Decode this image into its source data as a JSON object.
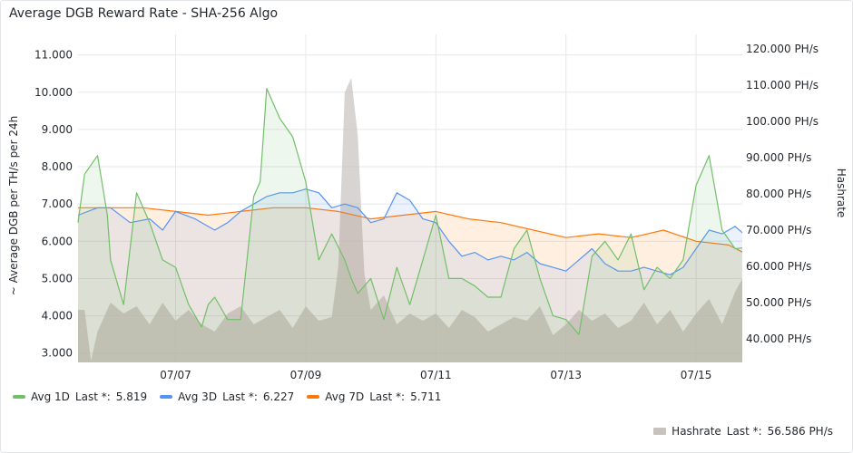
{
  "panel": {
    "title": "Average DGB Reward Rate - SHA-256 Algo"
  },
  "colors": {
    "avg1d": "#73bf69",
    "avg3d": "#5794f2",
    "avg7d": "#ff780a",
    "hashrate": "#c8c2bd",
    "grid": "#e6e8ea"
  },
  "legend": [
    {
      "name": "Avg 1D",
      "last_label": "Last *:",
      "last": "5.819",
      "color_key": "avg1d"
    },
    {
      "name": "Avg 3D",
      "last_label": "Last *:",
      "last": "6.227",
      "color_key": "avg3d"
    },
    {
      "name": "Avg 7D",
      "last_label": "Last *:",
      "last": "5.711",
      "color_key": "avg7d"
    }
  ],
  "legend_right": {
    "name": "Hashrate",
    "last_label": "Last *:",
    "last": "56.586 PH/s",
    "color_key": "hashrate"
  },
  "chart_data": {
    "type": "line",
    "ylabel": "~ Average DGB per TH/s per 24h",
    "y2label": "Hashrate",
    "ylim": [
      2.75,
      11.55
    ],
    "y2lim": [
      33.5,
      124.0
    ],
    "yticks": [
      "3.000",
      "4.000",
      "5.000",
      "6.000",
      "7.000",
      "8.000",
      "9.000",
      "10.000",
      "11.000"
    ],
    "y2ticks": [
      "40.000 PH/s",
      "50.000 PH/s",
      "60.000 PH/s",
      "70.000 PH/s",
      "80.000 PH/s",
      "90.000 PH/s",
      "100.000 PH/s",
      "110.000 PH/s",
      "120.000 PH/s"
    ],
    "xlim": [
      5.5,
      15.71
    ],
    "xticks": [
      {
        "label": "07/07",
        "x": 7
      },
      {
        "label": "07/09",
        "x": 9
      },
      {
        "label": "07/11",
        "x": 11
      },
      {
        "label": "07/13",
        "x": 13
      },
      {
        "label": "07/15",
        "x": 15
      }
    ],
    "grid": true,
    "legend_position": "bottom",
    "series": [
      {
        "name": "Avg 1D",
        "axis": "left",
        "color_key": "avg1d",
        "fill": true,
        "x": [
          5.5,
          5.6,
          5.8,
          5.95,
          6.0,
          6.2,
          6.4,
          6.6,
          6.8,
          7.0,
          7.2,
          7.4,
          7.5,
          7.6,
          7.8,
          8.0,
          8.2,
          8.3,
          8.4,
          8.6,
          8.8,
          9.0,
          9.2,
          9.4,
          9.6,
          9.7,
          9.8,
          10.0,
          10.2,
          10.4,
          10.6,
          10.8,
          11.0,
          11.2,
          11.4,
          11.6,
          11.8,
          12.0,
          12.2,
          12.4,
          12.6,
          12.8,
          13.0,
          13.2,
          13.4,
          13.6,
          13.8,
          14.0,
          14.2,
          14.4,
          14.6,
          14.8,
          15.0,
          15.2,
          15.4,
          15.6,
          15.71
        ],
        "values": [
          6.5,
          7.8,
          8.3,
          6.7,
          5.5,
          4.3,
          7.3,
          6.5,
          5.5,
          5.3,
          4.3,
          3.7,
          4.3,
          4.5,
          3.9,
          3.9,
          7.2,
          7.6,
          10.1,
          9.3,
          8.8,
          7.6,
          5.5,
          6.2,
          5.5,
          5.0,
          4.6,
          5.0,
          3.9,
          5.3,
          4.3,
          5.5,
          6.7,
          5.0,
          5.0,
          4.8,
          4.5,
          4.5,
          5.8,
          6.3,
          5.0,
          4.0,
          3.9,
          3.5,
          5.6,
          6.0,
          5.5,
          6.2,
          4.7,
          5.3,
          5.0,
          5.5,
          7.5,
          8.3,
          6.3,
          5.8,
          5.82
        ]
      },
      {
        "name": "Avg 3D",
        "axis": "left",
        "color_key": "avg3d",
        "fill": true,
        "x": [
          5.5,
          5.8,
          6.0,
          6.3,
          6.6,
          6.8,
          7.0,
          7.3,
          7.6,
          7.8,
          8.0,
          8.2,
          8.4,
          8.6,
          8.8,
          9.0,
          9.2,
          9.4,
          9.6,
          9.8,
          10.0,
          10.2,
          10.4,
          10.6,
          10.8,
          11.0,
          11.2,
          11.4,
          11.6,
          11.8,
          12.0,
          12.2,
          12.4,
          12.6,
          12.8,
          13.0,
          13.2,
          13.4,
          13.6,
          13.8,
          14.0,
          14.2,
          14.4,
          14.6,
          14.8,
          15.0,
          15.2,
          15.4,
          15.6,
          15.71
        ],
        "values": [
          6.7,
          6.9,
          6.9,
          6.5,
          6.6,
          6.3,
          6.8,
          6.6,
          6.3,
          6.5,
          6.8,
          7.0,
          7.2,
          7.3,
          7.3,
          7.4,
          7.3,
          6.9,
          7.0,
          6.9,
          6.5,
          6.6,
          7.3,
          7.1,
          6.6,
          6.5,
          6.0,
          5.6,
          5.7,
          5.5,
          5.6,
          5.5,
          5.7,
          5.4,
          5.3,
          5.2,
          5.5,
          5.8,
          5.4,
          5.2,
          5.2,
          5.3,
          5.2,
          5.1,
          5.3,
          5.8,
          6.3,
          6.2,
          6.4,
          6.23
        ]
      },
      {
        "name": "Avg 7D",
        "axis": "left",
        "color_key": "avg7d",
        "fill": true,
        "x": [
          5.5,
          6.0,
          6.5,
          7.0,
          7.5,
          8.0,
          8.5,
          9.0,
          9.5,
          10.0,
          10.5,
          11.0,
          11.5,
          12.0,
          12.5,
          13.0,
          13.5,
          14.0,
          14.5,
          15.0,
          15.5,
          15.71
        ],
        "values": [
          6.9,
          6.9,
          6.9,
          6.8,
          6.7,
          6.8,
          6.9,
          6.9,
          6.8,
          6.6,
          6.7,
          6.8,
          6.6,
          6.5,
          6.3,
          6.1,
          6.2,
          6.1,
          6.3,
          6.0,
          5.9,
          5.71
        ]
      },
      {
        "name": "Hashrate",
        "axis": "right",
        "type": "area",
        "color_key": "hashrate",
        "x": [
          5.5,
          5.6,
          5.7,
          5.8,
          6.0,
          6.2,
          6.4,
          6.6,
          6.8,
          7.0,
          7.2,
          7.4,
          7.6,
          7.8,
          8.0,
          8.2,
          8.4,
          8.6,
          8.8,
          9.0,
          9.2,
          9.4,
          9.5,
          9.6,
          9.7,
          9.8,
          9.9,
          10.0,
          10.2,
          10.4,
          10.6,
          10.8,
          11.0,
          11.2,
          11.4,
          11.6,
          11.8,
          12.0,
          12.2,
          12.4,
          12.6,
          12.8,
          13.0,
          13.2,
          13.4,
          13.6,
          13.8,
          14.0,
          14.2,
          14.4,
          14.6,
          14.8,
          15.0,
          15.2,
          15.4,
          15.6,
          15.71
        ],
        "values": [
          48,
          48,
          34,
          42,
          50,
          47,
          49,
          44,
          50,
          45,
          48,
          44,
          42,
          47,
          49,
          44,
          46,
          48,
          43,
          49,
          45,
          46,
          60,
          108,
          112,
          96,
          58,
          48,
          52,
          44,
          47,
          45,
          47,
          43,
          48,
          46,
          42,
          44,
          46,
          45,
          49,
          41,
          44,
          48,
          45,
          47,
          43,
          45,
          50,
          44,
          48,
          42,
          47,
          51,
          44,
          53,
          56.59
        ]
      }
    ]
  }
}
